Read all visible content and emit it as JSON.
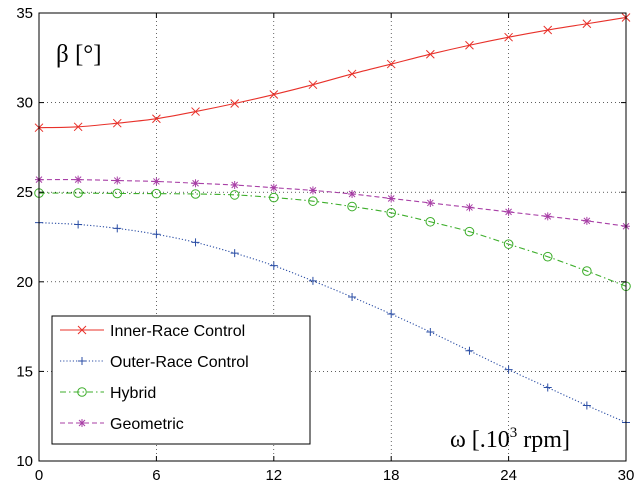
{
  "chart_data": {
    "type": "line",
    "title": "",
    "ylabel": "β [°]",
    "xlabel_main": "ω  [.10",
    "xlabel_sup": "3",
    "xlabel_unit": " rpm]",
    "xlim": [
      0,
      30
    ],
    "ylim": [
      10,
      35
    ],
    "xticks": [
      0,
      6,
      12,
      18,
      24,
      30
    ],
    "yticks": [
      10,
      15,
      20,
      25,
      30,
      35
    ],
    "grid": true,
    "legend_position": "lower-left",
    "x": [
      0,
      2,
      4,
      6,
      8,
      10,
      12,
      14,
      16,
      18,
      20,
      22,
      24,
      26,
      28,
      30
    ],
    "series": [
      {
        "name": "Inner-Race Control",
        "color": "#e8312a",
        "line": "solid",
        "marker": "x",
        "values": [
          28.6,
          28.65,
          28.85,
          29.1,
          29.5,
          29.95,
          30.45,
          31.0,
          31.6,
          32.15,
          32.7,
          33.2,
          33.65,
          34.05,
          34.4,
          34.75
        ]
      },
      {
        "name": "Outer-Race Control",
        "color": "#2b4ea5",
        "line": "dotted",
        "marker": "+",
        "values": [
          23.3,
          23.2,
          22.98,
          22.65,
          22.2,
          21.6,
          20.9,
          20.05,
          19.15,
          18.2,
          17.2,
          16.15,
          15.1,
          14.1,
          13.1,
          12.15
        ]
      },
      {
        "name": "Hybrid",
        "color": "#3dae2b",
        "line": "dashdot",
        "marker": "o",
        "values": [
          24.95,
          24.95,
          24.93,
          24.92,
          24.9,
          24.85,
          24.7,
          24.5,
          24.2,
          23.85,
          23.35,
          22.8,
          22.1,
          21.4,
          20.6,
          19.75
        ]
      },
      {
        "name": "Geometric",
        "color": "#a83fa6",
        "line": "dashed",
        "marker": "*",
        "values": [
          25.7,
          25.7,
          25.65,
          25.6,
          25.5,
          25.4,
          25.25,
          25.1,
          24.9,
          24.65,
          24.4,
          24.15,
          23.9,
          23.65,
          23.4,
          23.1
        ]
      }
    ]
  }
}
